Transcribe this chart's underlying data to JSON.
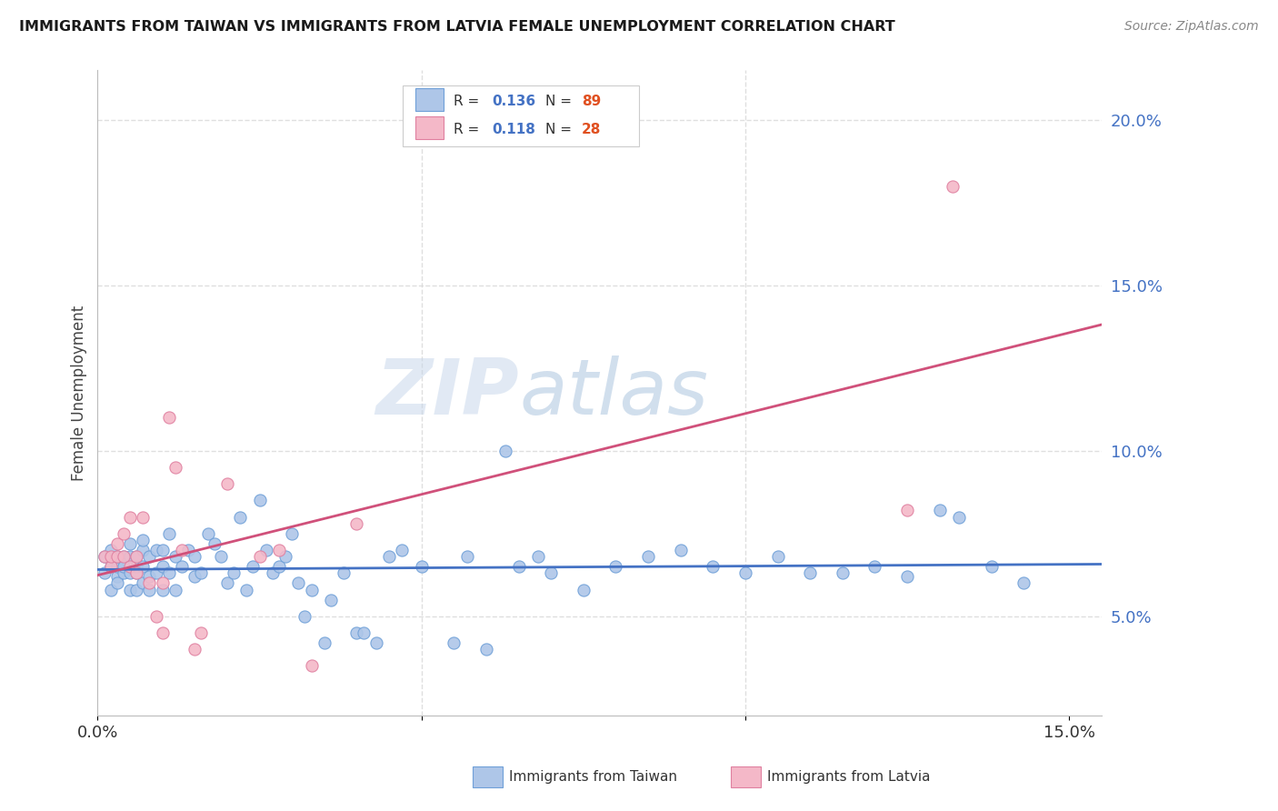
{
  "title": "IMMIGRANTS FROM TAIWAN VS IMMIGRANTS FROM LATVIA FEMALE UNEMPLOYMENT CORRELATION CHART",
  "source": "Source: ZipAtlas.com",
  "ylabel": "Female Unemployment",
  "xlim": [
    0.0,
    0.155
  ],
  "ylim": [
    0.02,
    0.215
  ],
  "y_ticks_right": [
    0.05,
    0.1,
    0.15,
    0.2
  ],
  "y_tick_labels_right": [
    "5.0%",
    "10.0%",
    "15.0%",
    "20.0%"
  ],
  "taiwan_color": "#aec6e8",
  "taiwan_color_dark": "#4472c4",
  "taiwan_edge": "#6fa0d8",
  "latvia_color": "#f4b8c8",
  "latvia_color_dark": "#d0507a",
  "latvia_edge": "#e080a0",
  "taiwan_R": "0.136",
  "taiwan_N": "89",
  "latvia_R": "0.118",
  "latvia_N": "28",
  "taiwan_x": [
    0.001,
    0.001,
    0.002,
    0.002,
    0.002,
    0.003,
    0.003,
    0.003,
    0.003,
    0.004,
    0.004,
    0.004,
    0.005,
    0.005,
    0.005,
    0.005,
    0.006,
    0.006,
    0.006,
    0.006,
    0.007,
    0.007,
    0.007,
    0.007,
    0.008,
    0.008,
    0.008,
    0.009,
    0.009,
    0.01,
    0.01,
    0.01,
    0.011,
    0.011,
    0.012,
    0.012,
    0.013,
    0.014,
    0.015,
    0.015,
    0.016,
    0.017,
    0.018,
    0.019,
    0.02,
    0.021,
    0.022,
    0.023,
    0.024,
    0.025,
    0.026,
    0.027,
    0.028,
    0.029,
    0.03,
    0.031,
    0.032,
    0.033,
    0.035,
    0.036,
    0.038,
    0.04,
    0.041,
    0.043,
    0.045,
    0.047,
    0.05,
    0.055,
    0.057,
    0.06,
    0.063,
    0.065,
    0.068,
    0.07,
    0.075,
    0.08,
    0.085,
    0.09,
    0.095,
    0.1,
    0.105,
    0.11,
    0.115,
    0.12,
    0.125,
    0.13,
    0.133,
    0.138,
    0.143
  ],
  "taiwan_y": [
    0.063,
    0.068,
    0.058,
    0.065,
    0.07,
    0.062,
    0.065,
    0.068,
    0.06,
    0.063,
    0.068,
    0.065,
    0.058,
    0.063,
    0.068,
    0.072,
    0.058,
    0.063,
    0.068,
    0.065,
    0.06,
    0.065,
    0.07,
    0.073,
    0.062,
    0.068,
    0.058,
    0.063,
    0.07,
    0.058,
    0.065,
    0.07,
    0.063,
    0.075,
    0.058,
    0.068,
    0.065,
    0.07,
    0.062,
    0.068,
    0.063,
    0.075,
    0.072,
    0.068,
    0.06,
    0.063,
    0.08,
    0.058,
    0.065,
    0.085,
    0.07,
    0.063,
    0.065,
    0.068,
    0.075,
    0.06,
    0.05,
    0.058,
    0.042,
    0.055,
    0.063,
    0.045,
    0.045,
    0.042,
    0.068,
    0.07,
    0.065,
    0.042,
    0.068,
    0.04,
    0.1,
    0.065,
    0.068,
    0.063,
    0.058,
    0.065,
    0.068,
    0.07,
    0.065,
    0.063,
    0.068,
    0.063,
    0.063,
    0.065,
    0.062,
    0.082,
    0.08,
    0.065,
    0.06
  ],
  "latvia_x": [
    0.001,
    0.002,
    0.002,
    0.003,
    0.003,
    0.004,
    0.004,
    0.005,
    0.005,
    0.006,
    0.006,
    0.007,
    0.008,
    0.009,
    0.01,
    0.01,
    0.011,
    0.012,
    0.013,
    0.015,
    0.016,
    0.02,
    0.025,
    0.028,
    0.033,
    0.04,
    0.125,
    0.132
  ],
  "latvia_y": [
    0.068,
    0.065,
    0.068,
    0.072,
    0.068,
    0.075,
    0.068,
    0.08,
    0.065,
    0.068,
    0.063,
    0.08,
    0.06,
    0.05,
    0.045,
    0.06,
    0.11,
    0.095,
    0.07,
    0.04,
    0.045,
    0.09,
    0.068,
    0.07,
    0.035,
    0.078,
    0.082,
    0.18
  ],
  "watermark_zip": "ZIP",
  "watermark_atlas": "atlas",
  "background_color": "#ffffff",
  "grid_color": "#d8d8d8"
}
